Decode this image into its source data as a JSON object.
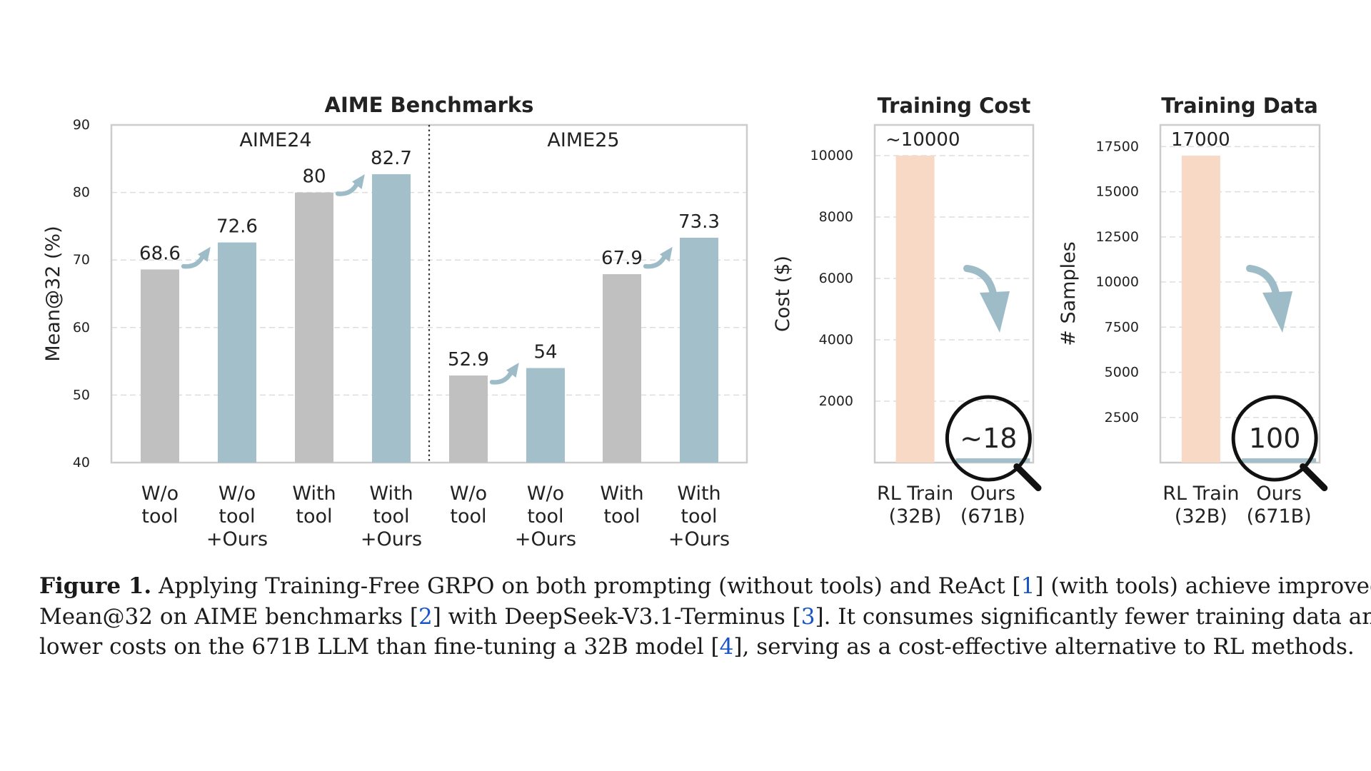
{
  "chart_data": [
    {
      "type": "bar",
      "title": "AIME Benchmarks",
      "ylabel": "Mean@32 (%)",
      "xlabel": "",
      "ylim": [
        40,
        90
      ],
      "yticks": [
        "40",
        "50",
        "60",
        "70",
        "80",
        "90"
      ],
      "groups": [
        {
          "name": "AIME24",
          "categories": [
            [
              "W/o",
              "tool"
            ],
            [
              "W/o",
              "tool",
              "+Ours"
            ],
            [
              "With",
              "tool"
            ],
            [
              "With",
              "tool",
              "+Ours"
            ]
          ],
          "values": [
            68.6,
            72.6,
            80,
            82.7
          ],
          "value_labels": [
            "68.6",
            "72.6",
            "80",
            "82.7"
          ],
          "kinds": [
            "baseline",
            "ours",
            "baseline",
            "ours"
          ]
        },
        {
          "name": "AIME25",
          "categories": [
            [
              "W/o",
              "tool"
            ],
            [
              "W/o",
              "tool",
              "+Ours"
            ],
            [
              "With",
              "tool"
            ],
            [
              "With",
              "tool",
              "+Ours"
            ]
          ],
          "values": [
            52.9,
            54,
            67.9,
            73.3
          ],
          "value_labels": [
            "52.9",
            "54",
            "67.9",
            "73.3"
          ],
          "kinds": [
            "baseline",
            "ours",
            "baseline",
            "ours"
          ]
        }
      ]
    },
    {
      "type": "bar",
      "title": "Training Cost",
      "ylabel": "Cost ($)",
      "ylim": [
        0,
        11000
      ],
      "yticks": [
        "2000",
        "4000",
        "6000",
        "8000",
        "10000"
      ],
      "categories": [
        [
          "RL Train",
          "(32B)"
        ],
        [
          "Ours",
          "(671B)"
        ]
      ],
      "values": [
        10000,
        18
      ],
      "value_labels": [
        "~10000",
        "~18"
      ]
    },
    {
      "type": "bar",
      "title": "Training Data",
      "ylabel": "# Samples",
      "ylim": [
        0,
        18700
      ],
      "yticks": [
        "2500",
        "5000",
        "7500",
        "10000",
        "12500",
        "15000",
        "17500"
      ],
      "categories": [
        [
          "RL Train",
          "(32B)"
        ],
        [
          "Ours",
          "(671B)"
        ]
      ],
      "values": [
        17000,
        100
      ],
      "value_labels": [
        "17000",
        "100"
      ]
    }
  ],
  "colors": {
    "baseline": "#c0c0c0",
    "ours": "#a3bfc9",
    "rl_train": "#f7d9c5",
    "arrow": "#9dbcc8",
    "axis": "#cccccc",
    "grid": "#dddddd",
    "text": "#222222"
  },
  "caption": {
    "label": "Figure 1.",
    "parts": [
      " Applying Training-Free GRPO on both prompting (without tools) and ReAct [",
      "1",
      "] (with tools) achieve improved",
      "Mean@32 on AIME benchmarks [",
      "2",
      "] with DeepSeek-V3.1-Terminus [",
      "3",
      "]. It consumes significantly fewer training data and",
      "lower costs on the 671B LLM than fine-tuning a 32B model [",
      "4",
      "], serving as a cost-effective alternative to RL methods."
    ]
  }
}
